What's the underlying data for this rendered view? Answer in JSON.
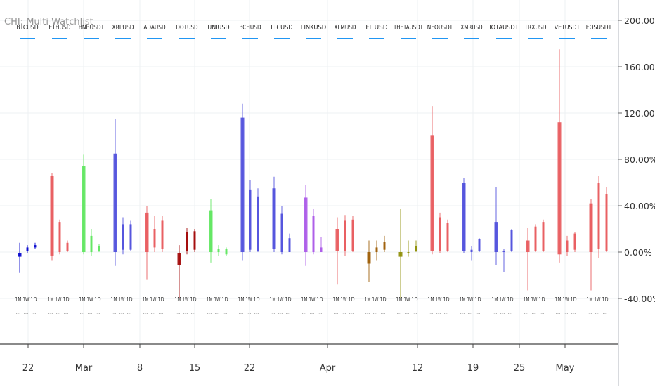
{
  "indicator_title": "CHI: Multi-Watchlist",
  "timeframes": [
    "1M",
    "1W",
    "1D"
  ],
  "x_axis_labels": [
    "22",
    "Mar",
    "8",
    "15",
    "22",
    "Apr",
    "12",
    "19",
    "25",
    "May"
  ],
  "chart_data": {
    "type": "candlestick",
    "title": "",
    "y_axis": {
      "label": "",
      "unit": "%",
      "ylim": [
        -80,
        205
      ],
      "ticks": [
        -40,
        0,
        40,
        80,
        120,
        160,
        200
      ],
      "tick_labels": [
        "-40.00%",
        "0.00%",
        "40.00%",
        "80.00%",
        "120.00%",
        "160.00%",
        "200.00%"
      ],
      "position": "right"
    },
    "grid": true,
    "series": [
      {
        "name": "BTCUSD",
        "color": "#0000cc",
        "bars": [
          {
            "tf": "1M",
            "o": -4,
            "c": -1,
            "h": 8,
            "l": -18
          },
          {
            "tf": "1W",
            "o": 1,
            "c": 4,
            "h": 6,
            "l": -1
          },
          {
            "tf": "1D",
            "o": 4,
            "c": 6,
            "h": 8,
            "l": 3
          }
        ]
      },
      {
        "name": "ETHUSD",
        "color": "#e8575a",
        "bars": [
          {
            "tf": "1M",
            "o": -3,
            "c": 66,
            "h": 68,
            "l": -7
          },
          {
            "tf": "1W",
            "o": 0,
            "c": 26,
            "h": 28,
            "l": -2
          },
          {
            "tf": "1D",
            "o": 1,
            "c": 8,
            "h": 10,
            "l": 0
          }
        ]
      },
      {
        "name": "BNBUSDT",
        "color": "#5ce65c",
        "bars": [
          {
            "tf": "1M",
            "o": 0,
            "c": 74,
            "h": 84,
            "l": -2
          },
          {
            "tf": "1W",
            "o": 0,
            "c": 14,
            "h": 20,
            "l": -3
          },
          {
            "tf": "1D",
            "o": 1,
            "c": 5,
            "h": 7,
            "l": 0
          }
        ]
      },
      {
        "name": "XRPUSD",
        "color": "#4b4bdc",
        "bars": [
          {
            "tf": "1M",
            "o": 0,
            "c": 85,
            "h": 115,
            "l": -12
          },
          {
            "tf": "1W",
            "o": 2,
            "c": 24,
            "h": 30,
            "l": -2
          },
          {
            "tf": "1D",
            "o": 2,
            "c": 24,
            "h": 27,
            "l": 1
          }
        ]
      },
      {
        "name": "ADAUSD",
        "color": "#e8575a",
        "bars": [
          {
            "tf": "1M",
            "o": 0,
            "c": 34,
            "h": 40,
            "l": -24
          },
          {
            "tf": "1W",
            "o": 4,
            "c": 20,
            "h": 31,
            "l": 0
          },
          {
            "tf": "1D",
            "o": 3,
            "c": 27,
            "h": 31,
            "l": 0
          }
        ]
      },
      {
        "name": "DOTUSD",
        "color": "#a00000",
        "bars": [
          {
            "tf": "1M",
            "o": -1,
            "c": -11,
            "h": 6,
            "l": -40
          },
          {
            "tf": "1W",
            "o": 1,
            "c": 17,
            "h": 21,
            "l": -2
          },
          {
            "tf": "1D",
            "o": 2,
            "c": 18,
            "h": 20,
            "l": 0
          }
        ]
      },
      {
        "name": "UNIUSD",
        "color": "#5ce65c",
        "bars": [
          {
            "tf": "1M",
            "o": 0,
            "c": 36,
            "h": 46,
            "l": -9
          },
          {
            "tf": "1W",
            "o": 0,
            "c": 3,
            "h": 6,
            "l": -3
          },
          {
            "tf": "1D",
            "o": -2,
            "c": 3,
            "h": 4,
            "l": -3
          }
        ]
      },
      {
        "name": "BCHUSD",
        "color": "#4b4bdc",
        "bars": [
          {
            "tf": "1M",
            "o": 0,
            "c": 116,
            "h": 128,
            "l": -7
          },
          {
            "tf": "1W",
            "o": 2,
            "c": 54,
            "h": 62,
            "l": 0
          },
          {
            "tf": "1D",
            "o": 1,
            "c": 48,
            "h": 55,
            "l": 0
          }
        ]
      },
      {
        "name": "LTCUSD",
        "color": "#4b4bdc",
        "bars": [
          {
            "tf": "1M",
            "o": 3,
            "c": 55,
            "h": 65,
            "l": 0
          },
          {
            "tf": "1W",
            "o": 0,
            "c": 33,
            "h": 40,
            "l": -2
          },
          {
            "tf": "1D",
            "o": 0,
            "c": 12,
            "h": 16,
            "l": 0
          }
        ]
      },
      {
        "name": "LINKUSD",
        "color": "#a855e8",
        "bars": [
          {
            "tf": "1M",
            "o": 0,
            "c": 47,
            "h": 58,
            "l": -12
          },
          {
            "tf": "1W",
            "o": 0,
            "c": 31,
            "h": 37,
            "l": -2
          },
          {
            "tf": "1D",
            "o": 0,
            "c": 4,
            "h": 13,
            "l": 0
          }
        ]
      },
      {
        "name": "XLMUSD",
        "color": "#e8575a",
        "bars": [
          {
            "tf": "1M",
            "o": 1,
            "c": 20,
            "h": 30,
            "l": -28
          },
          {
            "tf": "1W",
            "o": 1,
            "c": 27,
            "h": 32,
            "l": -3
          },
          {
            "tf": "1D",
            "o": 1,
            "c": 28,
            "h": 31,
            "l": 0
          }
        ]
      },
      {
        "name": "FILUSD",
        "color": "#9b5a00",
        "bars": [
          {
            "tf": "1M",
            "o": -10,
            "c": 0,
            "h": 10,
            "l": -26
          },
          {
            "tf": "1W",
            "o": 0,
            "c": 4,
            "h": 10,
            "l": -7
          },
          {
            "tf": "1D",
            "o": 2,
            "c": 9,
            "h": 14,
            "l": 0
          }
        ]
      },
      {
        "name": "THETAUSDT",
        "color": "#8c8c00",
        "bars": [
          {
            "tf": "1M",
            "o": 0,
            "c": -4,
            "h": 37,
            "l": -40
          },
          {
            "tf": "1W",
            "o": 0,
            "c": 0,
            "h": 10,
            "l": -4
          },
          {
            "tf": "1D",
            "o": 1,
            "c": 5,
            "h": 10,
            "l": 0
          }
        ]
      },
      {
        "name": "NEOUSDT",
        "color": "#e8575a",
        "bars": [
          {
            "tf": "1M",
            "o": 1,
            "c": 101,
            "h": 126,
            "l": -2
          },
          {
            "tf": "1W",
            "o": 1,
            "c": 30,
            "h": 34,
            "l": -1
          },
          {
            "tf": "1D",
            "o": 1,
            "c": 25,
            "h": 28,
            "l": 0
          }
        ]
      },
      {
        "name": "XMRUSD",
        "color": "#4b4bdc",
        "bars": [
          {
            "tf": "1M",
            "o": 1,
            "c": 60,
            "h": 64,
            "l": -1
          },
          {
            "tf": "1W",
            "o": 0,
            "c": 2,
            "h": 5,
            "l": -7
          },
          {
            "tf": "1D",
            "o": 1,
            "c": 11,
            "h": 12,
            "l": 0
          }
        ]
      },
      {
        "name": "IOTAUSDT",
        "color": "#4b4bdc",
        "bars": [
          {
            "tf": "1M",
            "o": 0,
            "c": 26,
            "h": 56,
            "l": -11
          },
          {
            "tf": "1W",
            "o": 0,
            "c": 1,
            "h": 3,
            "l": -17
          },
          {
            "tf": "1D",
            "o": 1,
            "c": 19,
            "h": 20,
            "l": 0
          }
        ]
      },
      {
        "name": "TRXUSD",
        "color": "#e8575a",
        "bars": [
          {
            "tf": "1M",
            "o": 0,
            "c": 10,
            "h": 21,
            "l": -33
          },
          {
            "tf": "1W",
            "o": 1,
            "c": 22,
            "h": 24,
            "l": 0
          },
          {
            "tf": "1D",
            "o": 1,
            "c": 26,
            "h": 28,
            "l": 0
          }
        ]
      },
      {
        "name": "VETUSDT",
        "color": "#e8575a",
        "bars": [
          {
            "tf": "1M",
            "o": -2,
            "c": 112,
            "h": 175,
            "l": -9
          },
          {
            "tf": "1W",
            "o": 0,
            "c": 10,
            "h": 14,
            "l": -3
          },
          {
            "tf": "1D",
            "o": 2,
            "c": 16,
            "h": 17,
            "l": 0
          }
        ]
      },
      {
        "name": "EOSUSDT",
        "color": "#e8575a",
        "bars": [
          {
            "tf": "1M",
            "o": 0,
            "c": 42,
            "h": 46,
            "l": -33
          },
          {
            "tf": "1W",
            "o": 3,
            "c": 60,
            "h": 66,
            "l": -5
          },
          {
            "tf": "1D",
            "o": 1,
            "c": 50,
            "h": 56,
            "l": 0
          }
        ]
      }
    ]
  }
}
